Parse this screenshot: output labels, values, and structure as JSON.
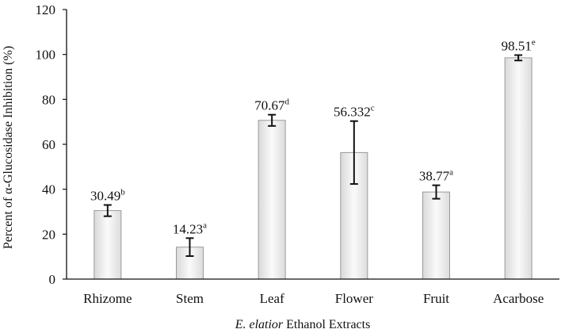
{
  "chart_data": {
    "type": "bar",
    "title": "",
    "xlabel": {
      "italic": "E. elatior",
      "rest": " Ethanol Extracts"
    },
    "ylabel": "Percent of α-Glucosidase Inhibition (%)",
    "ylim": [
      0,
      120
    ],
    "yticks": [
      0,
      20,
      40,
      60,
      80,
      100,
      120
    ],
    "grid": false,
    "categories": [
      "Rhizome",
      "Stem",
      "Leaf",
      "Flower",
      "Fruit",
      "Acarbose"
    ],
    "values": [
      30.49,
      14.23,
      70.67,
      56.332,
      38.77,
      98.51
    ],
    "errors": [
      2.5,
      4,
      2.5,
      14,
      3,
      1.2
    ],
    "value_labels": [
      "30.49",
      "14.23",
      "70.67",
      "56.332",
      "38.77",
      "98.51"
    ],
    "significance": [
      "b",
      "a",
      "d",
      "c",
      "a",
      "e"
    ]
  }
}
